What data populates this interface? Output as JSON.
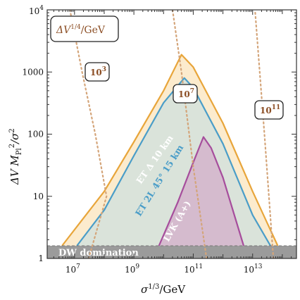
{
  "chart_data": {
    "type": "area",
    "xlabel": "σ^{1/3}/GeV",
    "ylabel": "ΔV M_Pl^2/σ^2",
    "xscale": "log",
    "yscale": "log",
    "xlim": [
      1200000.0,
      300000000000000.0
    ],
    "ylim": [
      1,
      10000
    ],
    "x_ticks": [
      {
        "value": 10000000.0,
        "base": "10",
        "exp": "7"
      },
      {
        "value": 1000000000.0,
        "base": "10",
        "exp": "9"
      },
      {
        "value": 100000000000.0,
        "base": "10",
        "exp": "11"
      },
      {
        "value": 10000000000000.0,
        "base": "10",
        "exp": "13"
      }
    ],
    "y_ticks": [
      {
        "value": 1,
        "label": "1"
      },
      {
        "value": 10,
        "label": "10"
      },
      {
        "value": 100,
        "label": "100"
      },
      {
        "value": 1000,
        "label": "1000"
      },
      {
        "value": 10000,
        "base": "10",
        "exp": "4"
      }
    ],
    "regions": [
      {
        "label": "ET Δ 10 km",
        "color": "#e8a53a",
        "fill": "#fbe7c4",
        "points": [
          [
            3800000.0,
            1.6
          ],
          [
            100000000.0,
            12
          ],
          [
            1000000000.0,
            75
          ],
          [
            10000000000.0,
            500
          ],
          [
            40000000000.0,
            1900
          ],
          [
            100000000000.0,
            1200
          ],
          [
            1000000000000.0,
            150
          ],
          [
            10000000000000.0,
            12
          ],
          [
            70000000000000.0,
            1.6
          ]
        ]
      },
      {
        "label": "ET 2L 45° 15 km",
        "color": "#4a9dc8",
        "fill": "#d3e2dc",
        "points": [
          [
            12000000.0,
            1.6
          ],
          [
            100000000.0,
            6
          ],
          [
            1000000000.0,
            45
          ],
          [
            10000000000.0,
            320
          ],
          [
            50000000000.0,
            800
          ],
          [
            100000000000.0,
            560
          ],
          [
            1000000000000.0,
            70
          ],
          [
            10000000000000.0,
            5
          ],
          [
            40000000000000.0,
            1.6
          ]
        ]
      },
      {
        "label": "LVK (A+)",
        "color": "#a64d9c",
        "fill": "#d3b4cb",
        "points": [
          [
            7000000000.0,
            1.6
          ],
          [
            30000000000.0,
            8
          ],
          [
            100000000000.0,
            35
          ],
          [
            220000000000.0,
            90
          ],
          [
            400000000000.0,
            60
          ],
          [
            1000000000000.0,
            20
          ],
          [
            5000000000000.0,
            1.6
          ]
        ]
      }
    ],
    "contours": [
      {
        "label": "10^3",
        "base": "10",
        "exp": "3",
        "points": [
          [
            30000000.0,
            1
          ],
          [
            120000000.0,
            10
          ],
          [
            50000000.0,
            100
          ],
          [
            18000000.0,
            1000
          ],
          [
            7000000.0,
            10000
          ]
        ]
      },
      {
        "label": "10^7",
        "base": "10",
        "exp": "7",
        "points": [
          [
            280000000000.0,
            1
          ],
          [
            100000000000.0,
            30
          ],
          [
            40000000000.0,
            1000
          ],
          [
            20000000000.0,
            10000
          ]
        ]
      },
      {
        "label": "10^11",
        "base": "10",
        "exp": "11",
        "points": [
          [
            50000000000000.0,
            1
          ],
          [
            25000000000000.0,
            100
          ],
          [
            12000000000000.0,
            10000
          ]
        ]
      }
    ],
    "contour_color": "#d4a57a",
    "band": {
      "label": "DW domination",
      "ymax": 1.6,
      "color": "#9b9b9b"
    },
    "legend": {
      "label": "ΔV^{1/4}/GeV",
      "color": "#8b4d23",
      "placement": "top-left"
    },
    "grid": false
  }
}
